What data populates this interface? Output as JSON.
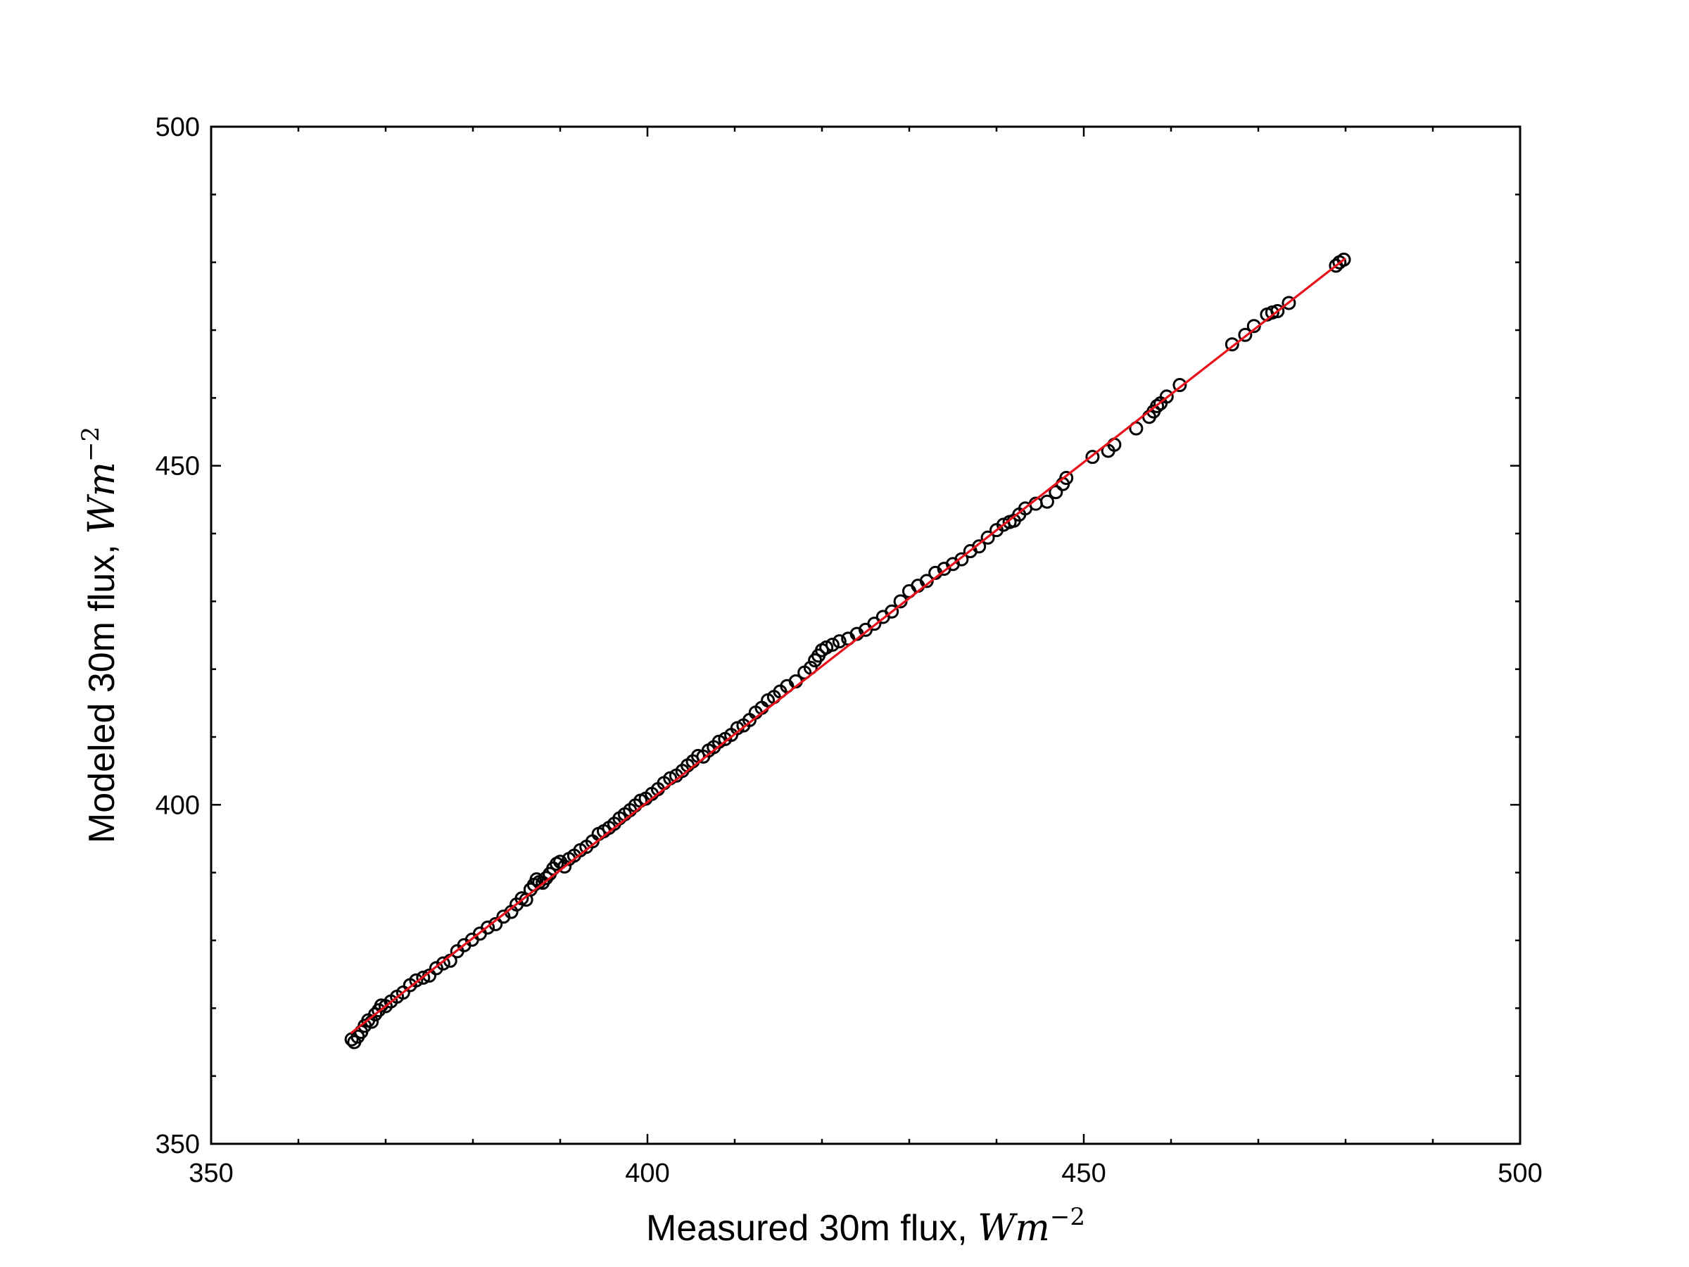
{
  "chart_data": {
    "type": "scatter",
    "xlabel": {
      "text": "Measured 30m flux, ",
      "unit": "Wm",
      "exponent": "−2"
    },
    "ylabel": {
      "text": "Modeled 30m flux, ",
      "unit": "Wm",
      "exponent": "−2"
    },
    "xlim": [
      350,
      500
    ],
    "ylim": [
      350,
      500
    ],
    "x_major_ticks": [
      350,
      400,
      450,
      500
    ],
    "y_major_ticks": [
      350,
      400,
      450,
      500
    ],
    "x_tick_labels": [
      "350",
      "400",
      "450",
      "500"
    ],
    "y_tick_labels": [
      "350",
      "400",
      "450",
      "500"
    ],
    "x_minor_step": 10,
    "y_minor_step": 10,
    "grid": false,
    "legend": "none",
    "colors": {
      "points": "#000000",
      "fit_line": "#e8101a"
    },
    "marker": "open-circle",
    "fit_line": {
      "x": [
        366,
        480
      ],
      "y": [
        366.3,
        480.6
      ]
    },
    "points": {
      "x": [
        366.1,
        366.4,
        366.8,
        367.2,
        367.6,
        368.0,
        368.4,
        368.8,
        369.2,
        369.5,
        370.0,
        370.6,
        371.3,
        372.0,
        372.8,
        373.5,
        374.3,
        375.0,
        375.8,
        376.6,
        377.4,
        378.2,
        379.0,
        379.9,
        380.8,
        381.7,
        382.6,
        383.5,
        384.4,
        385.0,
        385.6,
        386.1,
        386.6,
        387.0,
        387.3,
        387.6,
        388.0,
        388.4,
        388.8,
        389.2,
        389.6,
        390.0,
        390.5,
        391.0,
        391.6,
        392.3,
        393.0,
        393.7,
        394.4,
        395.0,
        395.6,
        396.2,
        396.8,
        397.4,
        398.0,
        398.6,
        399.2,
        399.8,
        400.5,
        401.2,
        401.9,
        402.6,
        403.3,
        404.0,
        404.6,
        405.2,
        405.8,
        406.4,
        407.0,
        407.6,
        408.2,
        408.9,
        409.6,
        410.3,
        411.0,
        411.7,
        412.4,
        413.1,
        413.8,
        414.5,
        415.2,
        416.0,
        417.0,
        418.0,
        418.7,
        419.2,
        419.6,
        420.0,
        420.5,
        421.2,
        422.0,
        423.0,
        424.0,
        425.0,
        426.0,
        427.0,
        428.0,
        429.0,
        430.0,
        431.0,
        432.0,
        433.0,
        434.0,
        435.0,
        436.0,
        437.0,
        438.0,
        439.0,
        440.0,
        440.8,
        441.5,
        442.0,
        442.6,
        443.3,
        444.5,
        445.8,
        446.8,
        447.6,
        448.0,
        451.0,
        452.8,
        453.5,
        456.0,
        457.5,
        458.0,
        458.4,
        458.8,
        459.5,
        461.0,
        467.0,
        468.5,
        469.5,
        471.0,
        471.6,
        472.2,
        473.5,
        478.9,
        479.3,
        479.8
      ],
      "y": [
        365.4,
        365.0,
        365.8,
        366.5,
        367.4,
        368.2,
        368.0,
        369.1,
        369.7,
        370.4,
        370.3,
        371.0,
        371.7,
        372.3,
        373.4,
        374.1,
        374.5,
        374.8,
        375.9,
        376.6,
        377.0,
        378.4,
        379.3,
        380.1,
        381.0,
        381.9,
        382.4,
        383.5,
        384.2,
        385.3,
        386.2,
        386.0,
        387.5,
        388.2,
        389.0,
        388.6,
        388.5,
        389.2,
        389.8,
        390.6,
        391.3,
        391.6,
        390.9,
        392.0,
        392.5,
        393.3,
        393.8,
        394.6,
        395.7,
        396.1,
        396.6,
        397.2,
        398.0,
        398.6,
        399.2,
        399.9,
        400.6,
        400.9,
        401.6,
        402.3,
        403.2,
        403.9,
        404.3,
        405.0,
        405.8,
        406.4,
        407.2,
        407.1,
        408.0,
        408.5,
        409.3,
        409.7,
        410.3,
        411.3,
        411.7,
        412.5,
        413.6,
        414.3,
        415.4,
        415.9,
        416.7,
        417.5,
        418.2,
        419.5,
        420.2,
        421.3,
        422.0,
        422.8,
        423.2,
        423.6,
        424.1,
        424.5,
        425.2,
        425.8,
        426.7,
        427.7,
        428.5,
        430.0,
        431.5,
        432.3,
        433.0,
        434.2,
        434.8,
        435.5,
        436.2,
        437.4,
        438.1,
        439.4,
        440.5,
        441.3,
        441.7,
        441.9,
        442.8,
        443.7,
        444.4,
        444.7,
        446.1,
        447.3,
        448.2,
        451.3,
        452.2,
        453.1,
        455.5,
        457.2,
        458.0,
        458.8,
        459.2,
        460.2,
        461.9,
        467.9,
        469.3,
        470.6,
        472.3,
        472.6,
        472.8,
        474.0,
        479.5,
        480.0,
        480.4
      ]
    }
  }
}
